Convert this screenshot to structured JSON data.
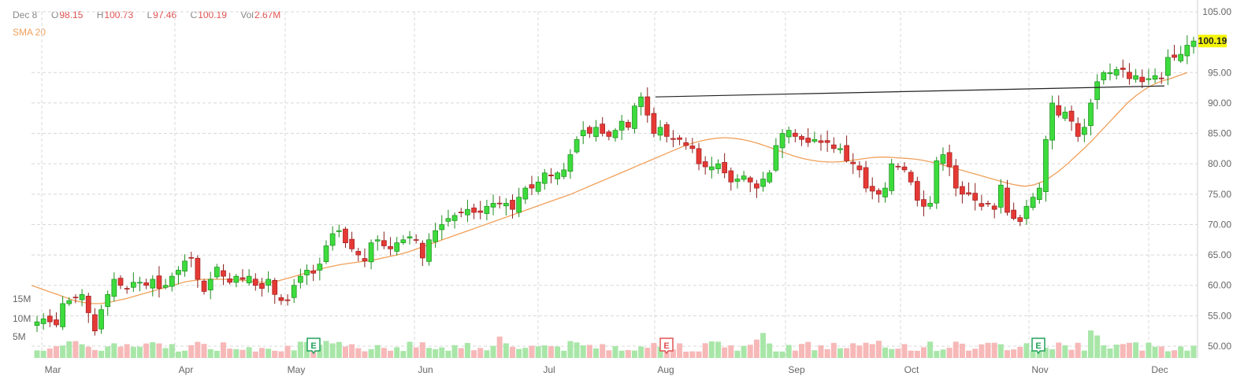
{
  "header": {
    "date": "Dec 8",
    "open_label": "O",
    "open_value": "98.15",
    "high_label": "H",
    "high_value": "100.73",
    "low_label": "L",
    "low_value": "97.46",
    "close_label": "C",
    "close_value": "100.19",
    "vol_label": "Vol",
    "vol_value": "2.67M",
    "sma_label": "SMA 20"
  },
  "colors": {
    "up": "#21b521",
    "up_fill": "#3ddc3d",
    "down": "#e53935",
    "down_fill": "#e53935",
    "vol_up": "#a8e6a8",
    "vol_down": "#f7b8b8",
    "sma": "#f0a05a",
    "grid": "#d8d8d8",
    "price_badge": "#f5f50a",
    "earnings_green": "#21a05a",
    "earnings_red": "#e05252"
  },
  "chart_data": {
    "type": "candlestick",
    "y_axis_ticks": [
      "105.00",
      "95.00",
      "90.00",
      "85.00",
      "80.00",
      "75.00",
      "70.00",
      "65.00",
      "60.00",
      "55.00",
      "50.00"
    ],
    "ylim": [
      50,
      105
    ],
    "volume_ticks": [
      "15M",
      "10M",
      "5M"
    ],
    "x_axis_labels": [
      "Mar",
      "Apr",
      "May",
      "Jun",
      "Jul",
      "Aug",
      "Sep",
      "Oct",
      "Nov",
      "Dec"
    ],
    "last_price": "100.19",
    "earnings_markers": [
      {
        "label": "E",
        "month": "May",
        "type": "positive"
      },
      {
        "label": "E",
        "month": "Aug",
        "type": "negative"
      },
      {
        "label": "E",
        "month": "Nov",
        "type": "positive"
      }
    ],
    "trendline": [
      {
        "date": "Jul 31",
        "price": 91.0
      },
      {
        "date": "Dec 5",
        "price": 92.8
      }
    ],
    "closes": [
      54,
      54.5,
      54,
      53.5,
      57,
      57.5,
      58,
      58.5,
      55.5,
      52.5,
      56,
      58.5,
      61,
      60,
      59.5,
      60.5,
      60.5,
      60,
      61,
      59.5,
      60,
      61.5,
      62.5,
      64,
      64.5,
      61,
      59,
      61,
      63,
      61.5,
      60.5,
      61.5,
      61,
      61.5,
      60,
      59.5,
      61,
      58.5,
      57.5,
      57.5,
      60,
      61.5,
      62.5,
      62,
      63.5,
      66.5,
      68.5,
      69,
      67,
      66,
      65,
      64,
      67,
      67.5,
      66.5,
      66,
      67,
      67.5,
      68,
      67.5,
      64.5,
      67.5,
      69,
      70,
      71,
      71.5,
      72,
      72.5,
      72,
      72,
      73,
      73.5,
      73.5,
      73.5,
      72.5,
      74.5,
      76,
      76,
      77,
      78.5,
      78,
      78.5,
      79,
      81.5,
      84,
      85.5,
      85,
      86,
      85,
      84.5,
      85.5,
      87,
      86,
      89.5,
      91,
      88,
      85,
      86,
      84.5,
      84,
      84,
      83,
      82.5,
      80,
      79.5,
      79.5,
      80,
      78.5,
      77,
      77.5,
      78,
      77,
      76,
      77.5,
      78.5,
      83,
      85,
      85.5,
      84.5,
      84,
      83.5,
      84,
      83.5,
      83.5,
      82.5,
      82.5,
      80.5,
      80,
      79,
      76,
      75.5,
      75,
      76,
      80,
      79.5,
      79,
      77,
      74,
      73,
      73.5,
      80.5,
      81.5,
      79.5,
      76,
      75,
      75,
      74,
      73,
      73.5,
      72.5,
      76.5,
      72,
      71,
      70.5,
      73,
      74.5,
      76,
      84,
      90,
      88,
      88.5,
      87,
      84.5,
      86,
      90,
      93.5,
      95,
      95,
      95.5,
      95.5,
      94,
      94.5,
      93.5,
      94,
      94.5,
      94,
      97.5,
      97.5,
      98,
      99.5,
      100.19
    ],
    "sma20": [
      60,
      59.5,
      59,
      58.5,
      58,
      57.5,
      57.2,
      57,
      57,
      57.2,
      57.5,
      57.8,
      58.2,
      58.6,
      59,
      59.4,
      59.8,
      60.2,
      60.6,
      60.8,
      61,
      61,
      61,
      61,
      60.9,
      60.8,
      60.6,
      60.5,
      60.5,
      60.8,
      61.2,
      61.6,
      62,
      62.4,
      62.8,
      63.1,
      63.4,
      63.6,
      63.8,
      64,
      64.2,
      64.5,
      64.8,
      65.1,
      65.5,
      66,
      66.5,
      67,
      67.5,
      68,
      68.5,
      69,
      69.5,
      70,
      70.5,
      71,
      71.5,
      72,
      72.5,
      73,
      73.5,
      74,
      74.5,
      75,
      75.6,
      76.2,
      76.8,
      77.4,
      78,
      78.6,
      79.2,
      79.8,
      80.4,
      81,
      81.6,
      82.2,
      82.8,
      83.3,
      83.7,
      84,
      84.2,
      84.3,
      84.2,
      84,
      83.7,
      83.3,
      82.8,
      82.3,
      81.8,
      81.3,
      80.9,
      80.6,
      80.4,
      80.3,
      80.3,
      80.4,
      80.6,
      80.8,
      81,
      81.1,
      81.1,
      81,
      80.9,
      80.8,
      80.6,
      80.3,
      80,
      79.6,
      79.2,
      78.8,
      78.4,
      78,
      77.6,
      77.2,
      76.8,
      76.5,
      76.3,
      76.5,
      77,
      77.8,
      78.8,
      80,
      81.3,
      82.6,
      84,
      85.5,
      87,
      88.5,
      90,
      91.2,
      92.2,
      93,
      93.6,
      94,
      94.5,
      95
    ]
  }
}
